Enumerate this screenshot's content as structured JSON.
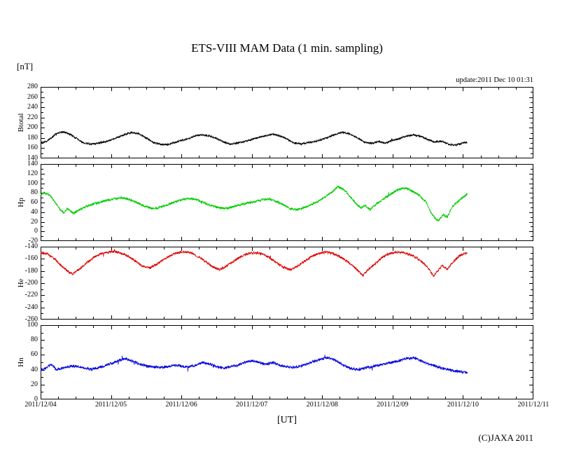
{
  "chart_data": {
    "type": "line",
    "title": "ETS-VIII MAM Data (1 min. sampling)",
    "ylabel_unit": "[nT]",
    "xlabel": "[UT]",
    "update_text": "update:2011 Dec 10 01:31",
    "copyright": "(C)JAXA 2011",
    "grid": false,
    "x_categories": [
      "2011/12/04",
      "2011/12/05",
      "2011/12/06",
      "2011/12/07",
      "2011/12/08",
      "2011/12/09",
      "2011/12/10",
      "2011/12/11"
    ],
    "x_range_days": [
      0,
      7
    ],
    "data_end_day": 6.063,
    "panels": [
      {
        "name": "Btotal",
        "color": "#000000",
        "ylim": [
          140,
          280
        ],
        "ytick_step": 20,
        "noise_amp": 1.8,
        "x_days": [
          0,
          0.08,
          0.15,
          0.22,
          0.3,
          0.38,
          0.5,
          0.6,
          0.7,
          0.8,
          0.9,
          1.0,
          1.1,
          1.2,
          1.3,
          1.4,
          1.5,
          1.6,
          1.7,
          1.8,
          1.9,
          2.0,
          2.1,
          2.2,
          2.3,
          2.4,
          2.5,
          2.6,
          2.7,
          2.8,
          2.9,
          3.0,
          3.1,
          3.2,
          3.3,
          3.4,
          3.5,
          3.6,
          3.7,
          3.8,
          3.9,
          4.0,
          4.1,
          4.2,
          4.3,
          4.4,
          4.5,
          4.6,
          4.7,
          4.8,
          4.9,
          5.0,
          5.1,
          5.2,
          5.3,
          5.4,
          5.5,
          5.6,
          5.7,
          5.8,
          5.9,
          6.0,
          6.063
        ],
        "values": [
          170,
          173,
          180,
          188,
          192,
          190,
          180,
          171,
          168,
          169,
          172,
          176,
          181,
          187,
          191,
          188,
          180,
          171,
          168,
          167,
          171,
          175,
          179,
          184,
          186,
          184,
          179,
          172,
          168,
          170,
          173,
          177,
          181,
          185,
          187,
          184,
          178,
          170,
          168,
          171,
          173,
          177,
          182,
          188,
          191,
          187,
          180,
          172,
          169,
          173,
          170,
          175,
          179,
          184,
          186,
          183,
          177,
          172,
          174,
          167,
          166,
          170,
          172
        ]
      },
      {
        "name": "Hp",
        "color": "#00cc00",
        "ylim": [
          -20,
          140
        ],
        "ytick_step": 20,
        "noise_amp": 2.4,
        "x_days": [
          0,
          0.05,
          0.12,
          0.2,
          0.28,
          0.33,
          0.38,
          0.42,
          0.47,
          0.55,
          0.65,
          0.75,
          0.85,
          0.95,
          1.05,
          1.15,
          1.25,
          1.35,
          1.45,
          1.55,
          1.65,
          1.75,
          1.85,
          1.95,
          2.05,
          2.15,
          2.25,
          2.35,
          2.45,
          2.55,
          2.65,
          2.75,
          2.85,
          2.95,
          3.05,
          3.15,
          3.25,
          3.35,
          3.45,
          3.55,
          3.65,
          3.75,
          3.85,
          3.95,
          4.05,
          4.15,
          4.22,
          4.3,
          4.4,
          4.5,
          4.55,
          4.6,
          4.68,
          4.78,
          4.88,
          4.98,
          5.08,
          5.18,
          5.28,
          5.38,
          5.48,
          5.55,
          5.6,
          5.65,
          5.72,
          5.78,
          5.85,
          5.95,
          6.063
        ],
        "values": [
          75,
          80,
          76,
          62,
          45,
          38,
          48,
          42,
          38,
          45,
          52,
          57,
          61,
          65,
          68,
          70,
          67,
          61,
          54,
          49,
          48,
          53,
          58,
          63,
          67,
          68,
          64,
          58,
          52,
          49,
          48,
          52,
          56,
          59,
          62,
          66,
          67,
          62,
          55,
          47,
          45,
          50,
          56,
          63,
          72,
          83,
          93,
          88,
          72,
          55,
          48,
          55,
          45,
          58,
          68,
          78,
          87,
          90,
          84,
          75,
          60,
          38,
          28,
          22,
          35,
          30,
          52,
          65,
          78
        ]
      },
      {
        "name": "He",
        "color": "#dd0000",
        "ylim": [
          -260,
          -140
        ],
        "ytick_step": 20,
        "noise_amp": 2.0,
        "x_days": [
          0,
          0.1,
          0.2,
          0.3,
          0.4,
          0.45,
          0.55,
          0.65,
          0.75,
          0.85,
          0.95,
          1.05,
          1.15,
          1.25,
          1.35,
          1.45,
          1.55,
          1.65,
          1.75,
          1.85,
          1.95,
          2.05,
          2.15,
          2.25,
          2.35,
          2.45,
          2.55,
          2.65,
          2.75,
          2.85,
          2.95,
          3.05,
          3.15,
          3.25,
          3.35,
          3.45,
          3.55,
          3.65,
          3.75,
          3.85,
          3.95,
          4.05,
          4.15,
          4.25,
          4.35,
          4.45,
          4.52,
          4.58,
          4.65,
          4.75,
          4.85,
          4.95,
          5.05,
          5.15,
          5.25,
          5.35,
          5.45,
          5.52,
          5.58,
          5.65,
          5.7,
          5.78,
          5.85,
          5.95,
          6.063
        ],
        "values": [
          -150,
          -152,
          -160,
          -172,
          -182,
          -185,
          -177,
          -167,
          -158,
          -152,
          -149,
          -148,
          -151,
          -156,
          -164,
          -172,
          -175,
          -169,
          -161,
          -154,
          -150,
          -148,
          -151,
          -157,
          -165,
          -174,
          -178,
          -171,
          -163,
          -156,
          -151,
          -150,
          -152,
          -158,
          -166,
          -174,
          -178,
          -172,
          -164,
          -156,
          -151,
          -149,
          -151,
          -156,
          -164,
          -173,
          -181,
          -188,
          -178,
          -168,
          -158,
          -152,
          -149,
          -150,
          -153,
          -159,
          -168,
          -178,
          -189,
          -179,
          -171,
          -177,
          -166,
          -155,
          -150
        ]
      },
      {
        "name": "Hn",
        "color": "#0000dd",
        "ylim": [
          0,
          100
        ],
        "ytick_step": 20,
        "noise_amp": 1.8,
        "x_days": [
          0,
          0.08,
          0.15,
          0.22,
          0.3,
          0.38,
          0.5,
          0.6,
          0.7,
          0.8,
          0.9,
          1.0,
          1.1,
          1.2,
          1.3,
          1.4,
          1.5,
          1.6,
          1.7,
          1.8,
          1.9,
          2.0,
          2.1,
          2.2,
          2.3,
          2.4,
          2.5,
          2.6,
          2.7,
          2.8,
          2.9,
          3.0,
          3.1,
          3.2,
          3.3,
          3.4,
          3.5,
          3.6,
          3.7,
          3.8,
          3.9,
          4.0,
          4.1,
          4.2,
          4.3,
          4.4,
          4.5,
          4.6,
          4.7,
          4.8,
          4.9,
          5.0,
          5.1,
          5.2,
          5.3,
          5.4,
          5.5,
          5.6,
          5.7,
          5.8,
          5.9,
          6.0,
          6.063
        ],
        "values": [
          40,
          42,
          48,
          40,
          42,
          44,
          45,
          43,
          41,
          42,
          45,
          48,
          52,
          55,
          52,
          48,
          45,
          44,
          43,
          44,
          46,
          45,
          44,
          46,
          50,
          48,
          44,
          42,
          44,
          46,
          50,
          52,
          50,
          47,
          50,
          46,
          44,
          43,
          45,
          48,
          52,
          55,
          56,
          52,
          46,
          42,
          40,
          42,
          44,
          46,
          48,
          50,
          52,
          55,
          56,
          52,
          48,
          45,
          42,
          40,
          38,
          37,
          36
        ]
      }
    ]
  }
}
